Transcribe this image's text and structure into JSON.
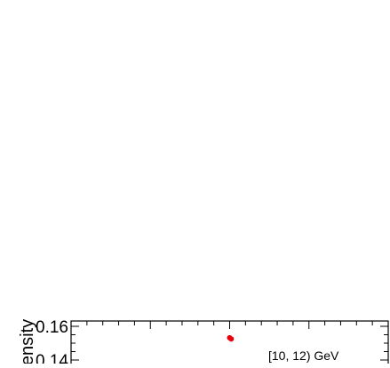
{
  "chart_data": {
    "type": "scatter",
    "ylabel": "ensity",
    "ylim": [
      0.14,
      0.16
    ],
    "y_ticks": [
      {
        "value": 0.16,
        "label": "0.16"
      },
      {
        "value": 0.14,
        "label": "0.14"
      }
    ],
    "x_ticks_count": 20,
    "grid": false,
    "annotation": "[10, 12) GeV",
    "series": [
      {
        "color": "#e8000b",
        "points": [
          {
            "x": 0.5,
            "y": 0.1532
          },
          {
            "x": 0.505,
            "y": 0.1525
          }
        ]
      }
    ]
  }
}
